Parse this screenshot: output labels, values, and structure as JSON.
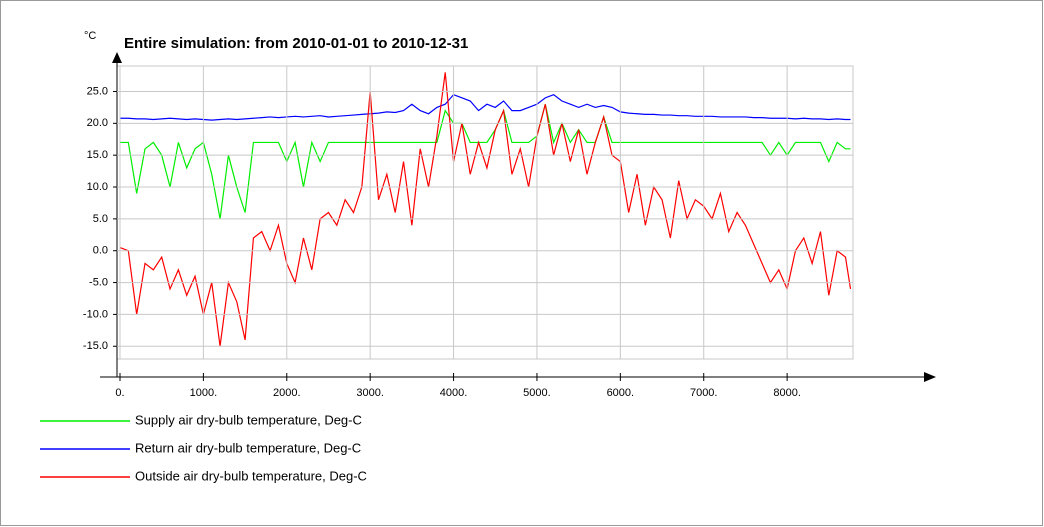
{
  "chart_data": {
    "type": "line",
    "title": "Entire simulation: from 2010-01-01 to 2010-12-31",
    "y_label": "°C",
    "x": [
      0,
      100,
      200,
      300,
      400,
      500,
      600,
      700,
      800,
      900,
      1000,
      1100,
      1200,
      1300,
      1400,
      1500,
      1600,
      1700,
      1800,
      1900,
      2000,
      2100,
      2200,
      2300,
      2400,
      2500,
      2600,
      2700,
      2800,
      2900,
      3000,
      3100,
      3200,
      3300,
      3400,
      3500,
      3600,
      3700,
      3800,
      3900,
      4000,
      4100,
      4200,
      4300,
      4400,
      4500,
      4600,
      4700,
      4800,
      4900,
      5000,
      5100,
      5200,
      5300,
      5400,
      5500,
      5600,
      5700,
      5800,
      5900,
      6000,
      6100,
      6200,
      6300,
      6400,
      6500,
      6600,
      6700,
      6800,
      6900,
      7000,
      7100,
      7200,
      7300,
      7400,
      7500,
      7600,
      7700,
      7800,
      7900,
      8000,
      8100,
      8200,
      8300,
      8400,
      8500,
      8600,
      8700,
      8760
    ],
    "series": [
      {
        "name": "Supply air dry-bulb temperature, Deg-C",
        "color": "#00ee00",
        "values": [
          17,
          17,
          9,
          16,
          17,
          15,
          10,
          17,
          13,
          16,
          17,
          12,
          5,
          15,
          10,
          6,
          17,
          17,
          17,
          17,
          14,
          17,
          10,
          17,
          14,
          17,
          17,
          17,
          17,
          17,
          17,
          17,
          17,
          17,
          17,
          17,
          17,
          17,
          17,
          22,
          20,
          20,
          17,
          17,
          17,
          19,
          22,
          17,
          17,
          17,
          18,
          23,
          17,
          20,
          17,
          19,
          17,
          17,
          21,
          17,
          17,
          17,
          17,
          17,
          17,
          17,
          17,
          17,
          17,
          17,
          17,
          17,
          17,
          17,
          17,
          17,
          17,
          17,
          15,
          17,
          15,
          17,
          17,
          17,
          17,
          14,
          17,
          16,
          16
        ]
      },
      {
        "name": "Return air dry-bulb temperature, Deg-C",
        "color": "#0000ff",
        "values": [
          20.8,
          20.8,
          20.7,
          20.7,
          20.6,
          20.7,
          20.8,
          20.7,
          20.6,
          20.7,
          20.6,
          20.5,
          20.6,
          20.7,
          20.6,
          20.7,
          20.8,
          20.9,
          21,
          20.9,
          21,
          21.1,
          21,
          21.1,
          21.2,
          21,
          21.1,
          21.2,
          21.3,
          21.4,
          21.5,
          21.6,
          21.8,
          21.7,
          22,
          23,
          22,
          21.5,
          22.5,
          23,
          24.5,
          24,
          23.5,
          22,
          23,
          22.5,
          23.5,
          22,
          22,
          22.5,
          23,
          24,
          24.5,
          23.5,
          23,
          22.5,
          23,
          22.5,
          22.8,
          22.5,
          21.8,
          21.6,
          21.5,
          21.4,
          21.4,
          21.3,
          21.3,
          21.2,
          21.2,
          21.1,
          21.1,
          21.1,
          21,
          21,
          21,
          21,
          20.9,
          20.9,
          20.8,
          20.8,
          20.8,
          20.7,
          20.8,
          20.7,
          20.7,
          20.6,
          20.7,
          20.6,
          20.6
        ]
      },
      {
        "name": "Outside air dry-bulb temperature, Deg-C",
        "color": "#ff0000",
        "values": [
          0.5,
          0,
          -10,
          -2,
          -3,
          -1,
          -6,
          -3,
          -7,
          -4,
          -10,
          -5,
          -15,
          -5,
          -8,
          -14,
          2,
          3,
          0,
          4,
          -2,
          -5,
          2,
          -3,
          5,
          6,
          4,
          8,
          6,
          10,
          25,
          8,
          12,
          6,
          14,
          4,
          16,
          10,
          18,
          28,
          14,
          20,
          12,
          17,
          13,
          19,
          22,
          12,
          16,
          10,
          18,
          23,
          15,
          20,
          14,
          19,
          12,
          17,
          21,
          15,
          14,
          6,
          12,
          4,
          10,
          8,
          2,
          11,
          5,
          8,
          7,
          5,
          9,
          3,
          6,
          4,
          1,
          -2,
          -5,
          -3,
          -6,
          0,
          2,
          -2,
          3,
          -7,
          0,
          -1,
          -6
        ]
      }
    ],
    "xlim": [
      -36,
      8790
    ],
    "ylim": [
      -17,
      29
    ],
    "xticks": [
      {
        "value": 0,
        "label": "0."
      },
      {
        "value": 1000,
        "label": "1000."
      },
      {
        "value": 2000,
        "label": "2000."
      },
      {
        "value": 3000,
        "label": "3000."
      },
      {
        "value": 4000,
        "label": "4000."
      },
      {
        "value": 5000,
        "label": "5000."
      },
      {
        "value": 6000,
        "label": "6000."
      },
      {
        "value": 7000,
        "label": "7000."
      },
      {
        "value": 8000,
        "label": "8000."
      }
    ],
    "yticks": [
      {
        "value": -15,
        "label": "-15.0"
      },
      {
        "value": -10,
        "label": "-10.0"
      },
      {
        "value": -5,
        "label": "-5.0"
      },
      {
        "value": 0,
        "label": "0.0"
      },
      {
        "value": 5,
        "label": "5.0"
      },
      {
        "value": 10,
        "label": "10.0"
      },
      {
        "value": 15,
        "label": "15.0"
      },
      {
        "value": 20,
        "label": "20.0"
      },
      {
        "value": 25,
        "label": "25.0"
      }
    ],
    "grid": true
  }
}
